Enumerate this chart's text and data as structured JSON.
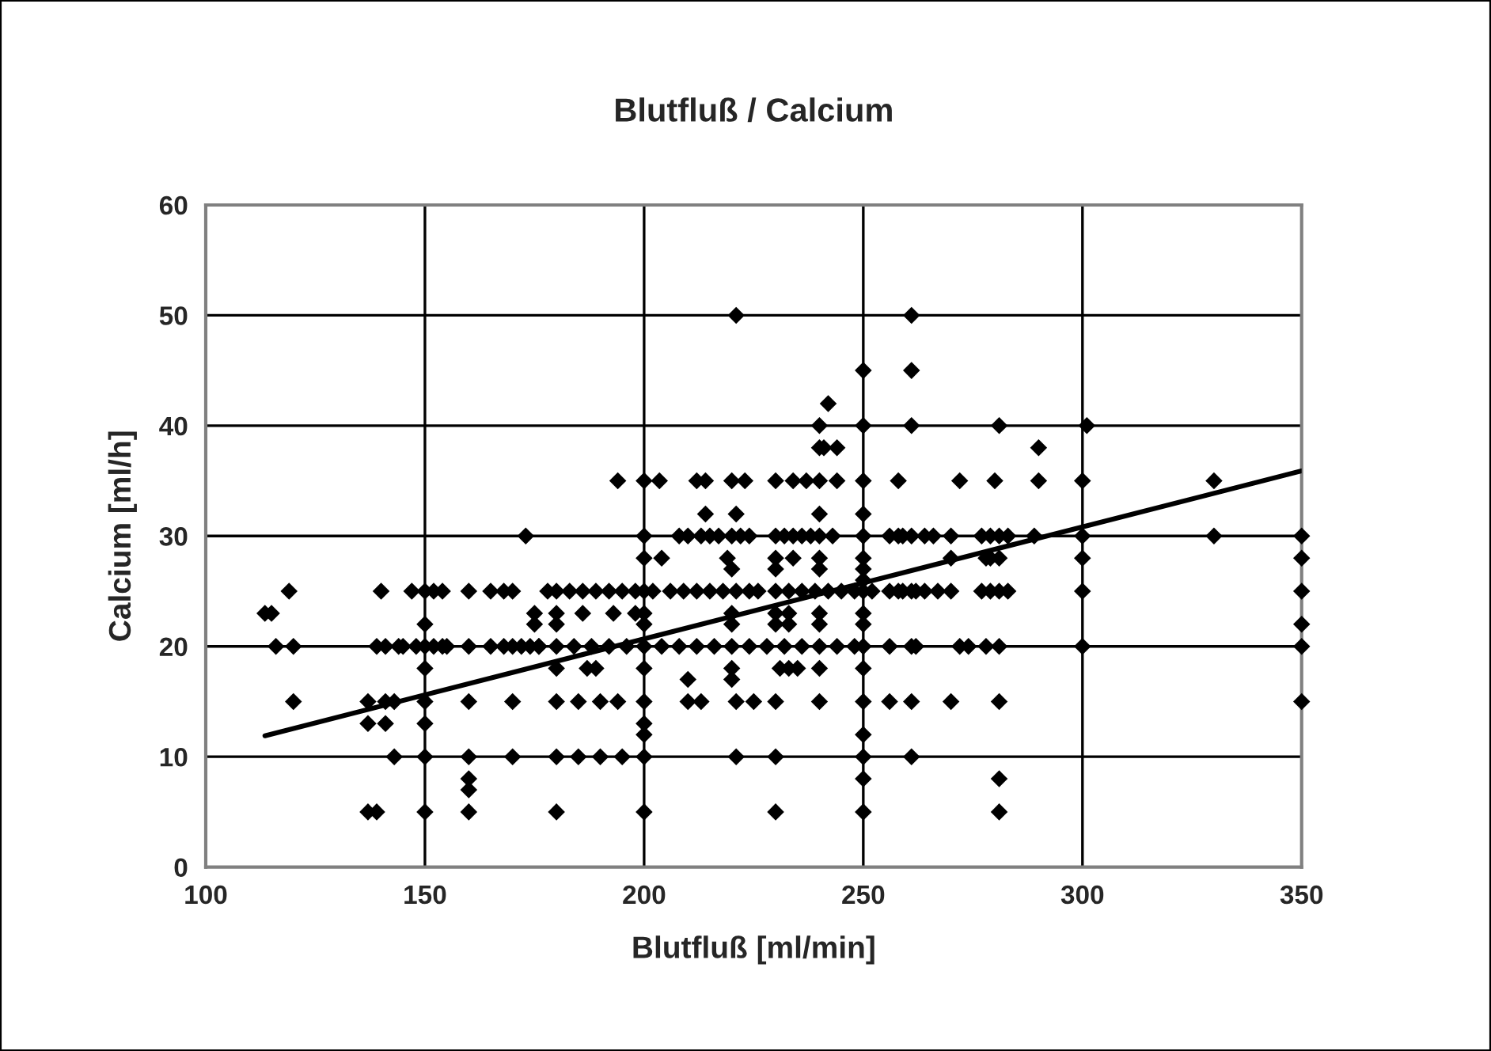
{
  "chart_data": {
    "type": "scatter",
    "title": "Blutfluß / Calcium",
    "xlabel": "Blutfluß [ml/min]",
    "ylabel": "Calcium [ml/h]",
    "xlim": [
      100,
      350
    ],
    "xticks": [
      100,
      150,
      200,
      250,
      300,
      350
    ],
    "ylim": [
      0,
      60
    ],
    "yticks": [
      0,
      10,
      20,
      30,
      40,
      50,
      60
    ],
    "grid": true,
    "legend": false,
    "series": [
      {
        "marker": "diamond",
        "color": "#000000",
        "x": [
          113.5,
          115,
          116,
          119,
          120,
          120,
          137,
          137,
          137,
          139,
          140,
          139,
          141,
          141,
          141,
          143,
          143,
          144,
          145,
          148,
          147,
          150,
          152,
          154,
          150,
          150,
          152,
          154,
          155,
          150,
          150,
          150,
          150,
          150,
          160,
          160,
          160,
          160,
          160,
          160,
          160,
          165,
          168,
          170,
          165,
          168,
          170,
          172,
          174,
          176,
          170,
          170,
          173,
          175,
          178,
          180,
          183,
          186,
          189,
          192,
          195,
          198,
          200,
          202,
          175,
          180,
          186,
          193,
          198,
          200,
          180,
          200,
          176,
          180,
          184,
          188,
          192,
          196,
          200,
          204,
          208,
          212,
          216,
          220,
          224,
          228,
          232,
          236,
          240,
          244,
          248,
          180,
          187,
          189,
          200,
          220,
          231,
          233,
          235,
          240,
          210,
          220,
          180,
          185,
          190,
          194,
          200,
          210,
          213,
          221,
          225,
          230,
          240,
          200,
          200,
          180,
          185,
          190,
          195,
          200,
          221,
          230,
          180,
          200,
          230,
          194,
          200,
          203.5,
          212,
          214,
          220,
          223,
          230,
          234,
          237,
          240,
          244,
          214,
          221,
          240,
          200,
          208,
          210,
          213,
          215,
          217,
          220,
          222,
          224,
          230,
          232,
          234,
          236,
          238,
          240,
          243,
          200,
          204,
          219,
          230,
          234,
          240,
          220,
          230,
          240,
          206,
          209,
          212,
          215,
          218,
          221,
          224,
          226,
          230,
          233,
          236,
          239,
          242,
          245,
          248,
          220,
          230,
          233,
          240,
          220,
          230,
          233,
          240,
          221,
          240,
          242,
          240,
          241,
          244,
          250,
          250,
          250,
          250,
          250,
          250,
          250,
          250,
          250,
          250,
          250,
          250,
          250,
          250,
          250,
          250,
          250,
          250,
          261,
          261,
          261,
          281,
          301,
          290,
          258,
          272,
          280,
          290,
          300,
          256,
          258,
          259,
          261,
          264,
          266,
          270,
          277,
          279,
          281,
          283,
          289,
          300,
          270,
          278,
          279,
          281,
          300,
          252,
          256,
          258,
          259,
          261,
          262,
          264,
          267,
          270,
          277,
          279,
          281,
          283,
          300,
          256,
          261,
          262,
          272,
          274,
          278,
          281,
          300,
          256,
          261,
          270,
          281,
          261,
          281,
          281,
          330,
          330,
          350,
          350,
          350,
          350,
          350,
          350
        ],
        "values": [
          23,
          23,
          20,
          25,
          20,
          15,
          15,
          13,
          5,
          5,
          25,
          20,
          20,
          15,
          13,
          15,
          10,
          20,
          20,
          20,
          25,
          25,
          25,
          25,
          22,
          20,
          20,
          20,
          20,
          18,
          15,
          13,
          10,
          5,
          25,
          20,
          15,
          10,
          8,
          7,
          5,
          25,
          25,
          25,
          20,
          20,
          20,
          20,
          20,
          20,
          15,
          10,
          30,
          22,
          25,
          25,
          25,
          25,
          25,
          25,
          25,
          25,
          25,
          25,
          23,
          23,
          23,
          23,
          23,
          23,
          22,
          22,
          20,
          20,
          20,
          20,
          20,
          20,
          20,
          20,
          20,
          20,
          20,
          20,
          20,
          20,
          20,
          20,
          20,
          20,
          20,
          18,
          18,
          18,
          18,
          18,
          18,
          18,
          18,
          18,
          17,
          17,
          15,
          15,
          15,
          15,
          15,
          15,
          15,
          15,
          15,
          15,
          15,
          13,
          12,
          10,
          10,
          10,
          10,
          10,
          10,
          10,
          5,
          5,
          5,
          35,
          35,
          35,
          35,
          35,
          35,
          35,
          35,
          35,
          35,
          35,
          35,
          32,
          32,
          32,
          30,
          30,
          30,
          30,
          30,
          30,
          30,
          30,
          30,
          30,
          30,
          30,
          30,
          30,
          30,
          30,
          28,
          28,
          28,
          28,
          28,
          28,
          27,
          27,
          27,
          25,
          25,
          25,
          25,
          25,
          25,
          25,
          25,
          25,
          25,
          25,
          25,
          25,
          25,
          25,
          23,
          23,
          23,
          23,
          22,
          22,
          22,
          22,
          50,
          40,
          42,
          38,
          38,
          38,
          45,
          40,
          35,
          32,
          30,
          28,
          27,
          26,
          25,
          23,
          22,
          20,
          18,
          15,
          12,
          10,
          8,
          5,
          50,
          45,
          40,
          40,
          40,
          38,
          35,
          35,
          35,
          35,
          35,
          30,
          30,
          30,
          30,
          30,
          30,
          30,
          30,
          30,
          30,
          30,
          30,
          30,
          28,
          28,
          28,
          28,
          28,
          25,
          25,
          25,
          25,
          25,
          25,
          25,
          25,
          25,
          25,
          25,
          25,
          25,
          25,
          20,
          20,
          20,
          20,
          20,
          20,
          20,
          20,
          15,
          15,
          15,
          15,
          10,
          8,
          5,
          35,
          30,
          30,
          28,
          25,
          22,
          20,
          15
        ]
      },
      {
        "type": "line",
        "color": "#000000",
        "x": [
          113.5,
          350
        ],
        "values": [
          11.9,
          35.9
        ]
      }
    ]
  }
}
